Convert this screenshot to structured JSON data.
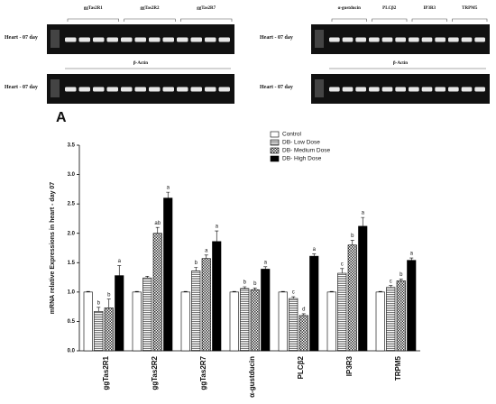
{
  "gel_panels": [
    {
      "genes": [
        "ggTas2R1",
        "ggTas2R2",
        "ggTas2R7"
      ],
      "control_label": "β-Actin",
      "row_labels": [
        "Heart - 07 day",
        "Heart - 07 day"
      ]
    },
    {
      "genes": [
        "α-gustducin",
        "PLCβ2",
        "IP3R3",
        "TRPM5"
      ],
      "control_label": "β-Actin",
      "row_labels": [
        "Heart - 07 day",
        "Heart - 07 day"
      ]
    }
  ],
  "chart_data": {
    "type": "bar",
    "panel_label": "A",
    "ylabel": "mRNA relative Expressions in heart - day 07",
    "categories": [
      "ggTas2R1",
      "ggTas2R2",
      "ggTas2R7",
      "α-gustducin",
      "PLCβ2",
      "IP3R3",
      "TRPM5"
    ],
    "series": [
      {
        "name": "Control",
        "color": "#ffffff",
        "pattern": "solid",
        "values": [
          1.0,
          1.0,
          1.0,
          1.0,
          1.0,
          1.0,
          1.0
        ],
        "errors": [
          0.01,
          0.01,
          0.01,
          0.01,
          0.01,
          0.01,
          0.01
        ],
        "letters": [
          null,
          null,
          null,
          null,
          null,
          null,
          null
        ]
      },
      {
        "name": "DB- Low Dose",
        "color": "#777777",
        "pattern": "stripes",
        "values": [
          0.67,
          1.24,
          1.36,
          1.06,
          0.89,
          1.32,
          1.08
        ],
        "errors": [
          0.07,
          0.03,
          0.06,
          0.03,
          0.03,
          0.08,
          0.03
        ],
        "letters": [
          "b",
          null,
          "b",
          "b",
          "c",
          "c",
          "c"
        ]
      },
      {
        "name": "DB- Medium Dose",
        "color": "#333333",
        "pattern": "checks",
        "values": [
          0.73,
          2.0,
          1.57,
          1.04,
          0.6,
          1.8,
          1.19
        ],
        "errors": [
          0.15,
          0.1,
          0.06,
          0.03,
          0.03,
          0.08,
          0.03
        ],
        "letters": [
          "b",
          "ab",
          "a",
          "b",
          "d",
          "b",
          "b"
        ]
      },
      {
        "name": "DB- High Dose",
        "color": "#000000",
        "pattern": "solid",
        "values": [
          1.28,
          2.6,
          1.86,
          1.39,
          1.61,
          2.12,
          1.54
        ],
        "errors": [
          0.17,
          0.1,
          0.18,
          0.04,
          0.04,
          0.15,
          0.04
        ],
        "letters": [
          "a",
          "a",
          "a",
          "a",
          "a",
          "a",
          "a"
        ]
      }
    ],
    "ylim": [
      0,
      3.5
    ],
    "yticks": [
      {
        "value": 0,
        "label": "0.0"
      },
      {
        "value": 0.5,
        "label": "0.5"
      },
      {
        "value": 1,
        "label": "1.0"
      },
      {
        "value": 1.5,
        "label": "1.5"
      },
      {
        "value": 2,
        "label": "2.0"
      },
      {
        "value": 2.5,
        "label": "2.5"
      },
      {
        "value": 3,
        "label": "3.0"
      },
      {
        "value": 3.5,
        "label": "3.5"
      }
    ],
    "legend": "upper-right"
  }
}
